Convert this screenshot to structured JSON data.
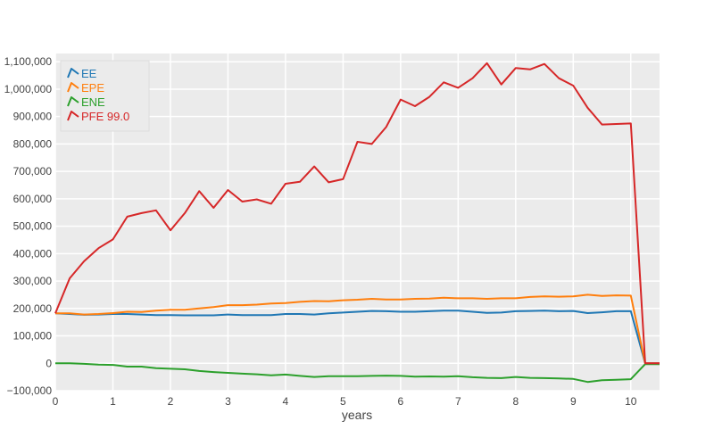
{
  "chart_data": {
    "type": "line",
    "xlabel": "years",
    "ylabel": "",
    "xlim": [
      0,
      10.5
    ],
    "ylim": [
      -100000,
      1130000
    ],
    "x_ticks": [
      0,
      1,
      2,
      3,
      4,
      5,
      6,
      7,
      8,
      9,
      10
    ],
    "y_ticks": [
      -100000,
      0,
      100000,
      200000,
      300000,
      400000,
      500000,
      600000,
      700000,
      800000,
      900000,
      1000000,
      1100000
    ],
    "x_tick_labels": [
      "0",
      "1",
      "2",
      "3",
      "4",
      "5",
      "6",
      "7",
      "8",
      "9",
      "10"
    ],
    "y_tick_labels": [
      "−100,000",
      "0",
      "100,000",
      "200,000",
      "300,000",
      "400,000",
      "500,000",
      "600,000",
      "700,000",
      "800,000",
      "900,000",
      "1,000,000",
      "1,100,000"
    ],
    "grid": true,
    "legend_position": "top-left",
    "background_color": "#ebebeb",
    "x": [
      0,
      0.25,
      0.5,
      0.75,
      1,
      1.25,
      1.5,
      1.75,
      2,
      2.25,
      2.5,
      2.75,
      3,
      3.25,
      3.5,
      3.75,
      4,
      4.25,
      4.5,
      4.75,
      5,
      5.25,
      5.5,
      5.75,
      6,
      6.25,
      6.5,
      6.75,
      7,
      7.25,
      7.5,
      7.75,
      8,
      8.25,
      8.5,
      8.75,
      9,
      9.25,
      9.5,
      9.75,
      10,
      10.25,
      10.5
    ],
    "series": [
      {
        "name": "EE",
        "color": "#1f77b4",
        "values": [
          182000,
          180000,
          177000,
          178000,
          180000,
          180000,
          178000,
          176000,
          176000,
          175000,
          175000,
          175000,
          178000,
          176000,
          176000,
          176000,
          180000,
          180000,
          178000,
          182000,
          185000,
          188000,
          191000,
          190000,
          188000,
          188000,
          190000,
          192000,
          192000,
          188000,
          184000,
          185000,
          190000,
          191000,
          192000,
          190000,
          191000,
          183000,
          186000,
          190000,
          190000,
          0,
          0
        ]
      },
      {
        "name": "EPE",
        "color": "#ff7f0e",
        "values": [
          182000,
          182000,
          178000,
          180000,
          183000,
          188000,
          187000,
          192000,
          195000,
          195000,
          200000,
          205000,
          212000,
          212000,
          214000,
          218000,
          220000,
          224000,
          227000,
          226000,
          230000,
          232000,
          235000,
          233000,
          233000,
          235000,
          236000,
          239000,
          237000,
          237000,
          235000,
          237000,
          237000,
          242000,
          244000,
          243000,
          244000,
          250000,
          246000,
          248000,
          247000,
          0,
          0
        ]
      },
      {
        "name": "ENE",
        "color": "#2ca02c",
        "values": [
          0,
          0,
          -2000,
          -5000,
          -6000,
          -12000,
          -12000,
          -18000,
          -20000,
          -22000,
          -28000,
          -32000,
          -35000,
          -38000,
          -40000,
          -44000,
          -41000,
          -46000,
          -50000,
          -47000,
          -47000,
          -47000,
          -46000,
          -45000,
          -46000,
          -49000,
          -48000,
          -49000,
          -47000,
          -51000,
          -53000,
          -54000,
          -50000,
          -53000,
          -54000,
          -55000,
          -57000,
          -68000,
          -62000,
          -60000,
          -58000,
          -3000,
          -3000
        ]
      },
      {
        "name": "PFE 99.0",
        "color": "#d62728",
        "values": [
          182000,
          310000,
          372000,
          420000,
          452000,
          535000,
          548000,
          558000,
          485000,
          548000,
          628000,
          567000,
          632000,
          590000,
          598000,
          582000,
          655000,
          662000,
          718000,
          660000,
          672000,
          808000,
          800000,
          862000,
          962000,
          938000,
          972000,
          1025000,
          1005000,
          1040000,
          1095000,
          1017000,
          1077000,
          1072000,
          1092000,
          1040000,
          1013000,
          932000,
          871000,
          873000,
          875000,
          0,
          0
        ]
      }
    ]
  }
}
